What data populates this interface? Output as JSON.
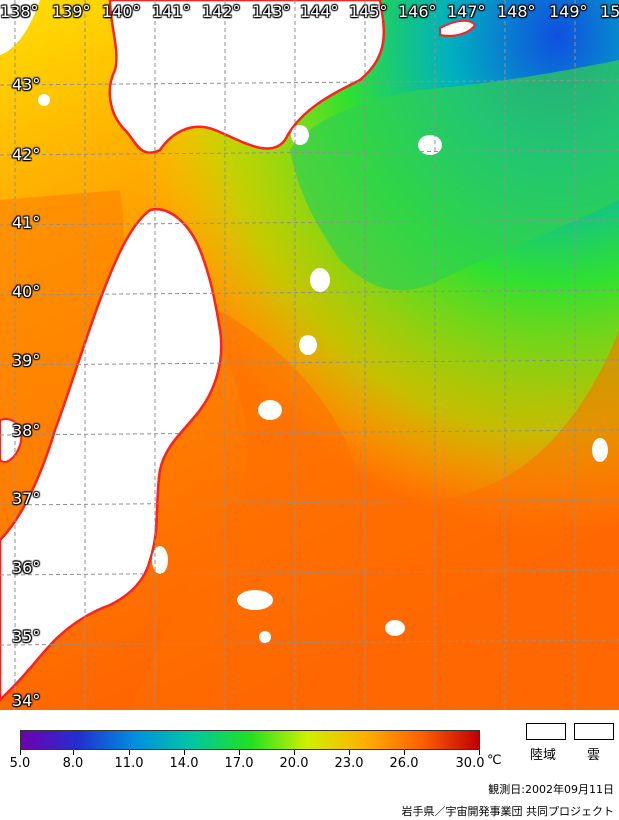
{
  "map": {
    "lon_labels": [
      "138°",
      "139°",
      "140°",
      "141°",
      "142°",
      "143°",
      "144°",
      "145°",
      "146°",
      "147°",
      "148°",
      "149°",
      "15"
    ],
    "lat_labels": [
      "43°",
      "42°",
      "41°",
      "40°",
      "39°",
      "38°",
      "37°",
      "36°",
      "35°",
      "34°"
    ]
  },
  "legend": {
    "scale_min": 5.0,
    "scale_max": 30.0,
    "tick_values": [
      "5.0",
      "8.0",
      "11.0",
      "14.0",
      "17.0",
      "20.0",
      "23.0",
      "26.0",
      "30.0"
    ],
    "unit": "℃",
    "land_label": "陸域",
    "cloud_label": "雲",
    "colors": [
      "#7000b0",
      "#2030d0",
      "#0090e0",
      "#00c8a0",
      "#20e020",
      "#d0f000",
      "#ffb000",
      "#ff6000",
      "#c00000"
    ]
  },
  "footer": {
    "observation_date": "観測日:2002年09月11日",
    "credit": "岩手県／宇宙開発事業団 共同プロジェクト"
  }
}
